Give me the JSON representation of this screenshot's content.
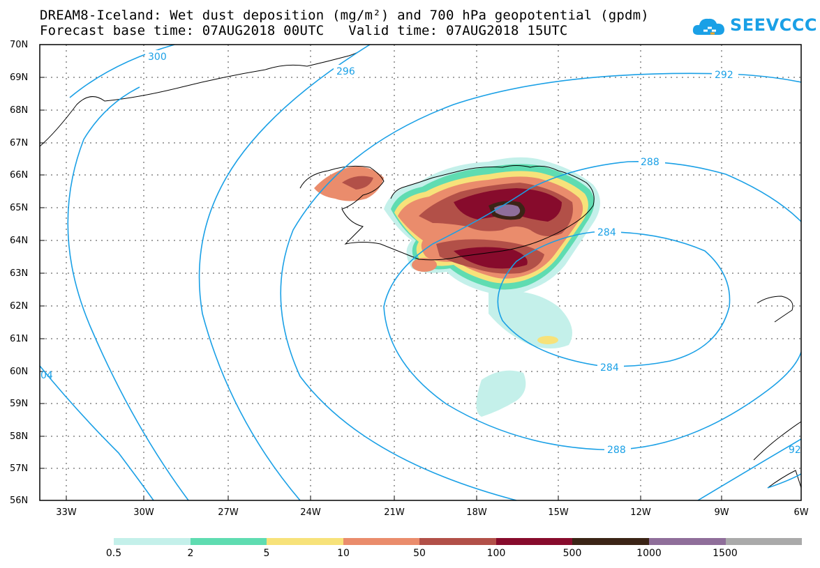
{
  "title": {
    "line1": "DREAM8-Iceland: Wet dust deposition (mg/m²) and 700 hPa geopotential (gpdm)",
    "line2": "Forecast base time: 07AUG2018 00UTC   Valid time: 07AUG2018 15UTC"
  },
  "logo": {
    "text": "SEEVCCC",
    "color": "#1aa0e6"
  },
  "map": {
    "lat_labels": [
      "70N",
      "69N",
      "68N",
      "67N",
      "66N",
      "65N",
      "64N",
      "63N",
      "62N",
      "61N",
      "60N",
      "59N",
      "58N",
      "57N",
      "56N"
    ],
    "lon_labels": [
      "33W",
      "30W",
      "27W",
      "24W",
      "21W",
      "18W",
      "15W",
      "12W",
      "9W",
      "6W"
    ],
    "contour_labels": [
      "300",
      "296",
      "292",
      "288",
      "284",
      "284",
      "288",
      "04",
      "92"
    ],
    "contour_color": "#1aa0e6"
  },
  "legend": {
    "colors": [
      "#c4f0ea",
      "#5fdcb1",
      "#f7e27a",
      "#ea8c6c",
      "#b25048",
      "#870b2c",
      "#3b2416",
      "#8f6e9a",
      "#aaaaaa"
    ],
    "labels": [
      "0.5",
      "2",
      "5",
      "10",
      "50",
      "100",
      "500",
      "1000",
      "1500"
    ]
  }
}
